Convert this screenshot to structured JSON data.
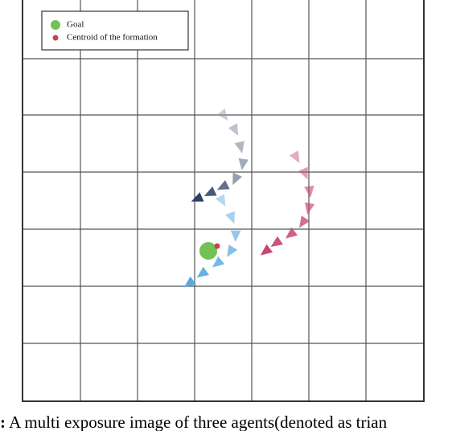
{
  "figure": {
    "legend": [
      "Goal",
      "Centroid of the formation"
    ],
    "caption_prefix": ":",
    "caption": "A multi exposure image of three agents(denoted as trian"
  }
}
